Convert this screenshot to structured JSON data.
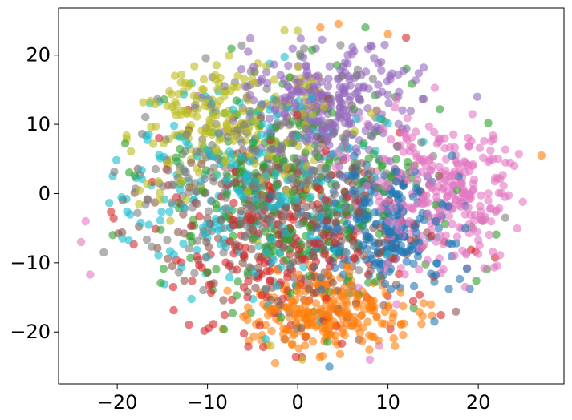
{
  "chart_data": {
    "type": "scatter",
    "title": "",
    "xlabel": "",
    "ylabel": "",
    "xlim": [
      -26.5,
      29.5
    ],
    "ylim": [
      -27.5,
      26.8
    ],
    "xticks": [
      -20,
      -10,
      0,
      10,
      20
    ],
    "yticks": [
      -20,
      -10,
      0,
      10,
      20
    ],
    "xtick_labels": [
      "−20",
      "−10",
      "0",
      "10",
      "20"
    ],
    "ytick_labels": [
      "−20",
      "−10",
      "0",
      "10",
      "20"
    ],
    "grid": false,
    "legend": "none",
    "marker_alpha": 0.6,
    "n_points": 2600,
    "palette": [
      "#1f77b4",
      "#ff7f0e",
      "#2ca02c",
      "#d62728",
      "#9467bd",
      "#8c564b",
      "#e377c2",
      "#7f7f7f",
      "#bcbd22",
      "#17becf"
    ],
    "clusters": [
      {
        "color": "#1f77b4",
        "center": [
          9,
          -5
        ],
        "spread": [
          6,
          6
        ],
        "weight": 1.0
      },
      {
        "color": "#ff7f0e",
        "center": [
          3,
          -17
        ],
        "spread": [
          6,
          4
        ],
        "weight": 0.9
      },
      {
        "color": "#2ca02c",
        "center": [
          0,
          0
        ],
        "spread": [
          11,
          11
        ],
        "weight": 0.8
      },
      {
        "color": "#d62728",
        "center": [
          0,
          -8
        ],
        "spread": [
          10,
          9
        ],
        "weight": 0.9
      },
      {
        "color": "#9467bd",
        "center": [
          3,
          13
        ],
        "spread": [
          6,
          6
        ],
        "weight": 1.0
      },
      {
        "color": "#8c564b",
        "center": [
          -2,
          -3
        ],
        "spread": [
          10,
          9
        ],
        "weight": 0.8
      },
      {
        "color": "#e377c2",
        "center": [
          16,
          0
        ],
        "spread": [
          6,
          7
        ],
        "weight": 1.0
      },
      {
        "color": "#7f7f7f",
        "center": [
          -4,
          3
        ],
        "spread": [
          10,
          10
        ],
        "weight": 1.0
      },
      {
        "color": "#bcbd22",
        "center": [
          -8,
          10
        ],
        "spread": [
          8,
          7
        ],
        "weight": 1.0
      },
      {
        "color": "#17becf",
        "center": [
          -6,
          0
        ],
        "spread": [
          11,
          10
        ],
        "weight": 1.0
      }
    ],
    "outliers": [
      {
        "x": -23.5,
        "y": -4,
        "color": "#e377c2"
      },
      {
        "x": -24,
        "y": -7,
        "color": "#e377c2"
      },
      {
        "x": -23,
        "y": -11.7,
        "color": "#e377c2"
      },
      {
        "x": -21.5,
        "y": -8.5,
        "color": "#7f7f7f"
      },
      {
        "x": -20.5,
        "y": -6,
        "color": "#2ca02c"
      },
      {
        "x": 27,
        "y": 5.5,
        "color": "#ff7f0e"
      },
      {
        "x": 24.5,
        "y": 5.7,
        "color": "#e377c2"
      },
      {
        "x": 24,
        "y": 4,
        "color": "#e377c2"
      },
      {
        "x": 23,
        "y": -3.5,
        "color": "#7f7f7f"
      },
      {
        "x": 0,
        "y": 23.5,
        "color": "#bcbd22"
      },
      {
        "x": 2.5,
        "y": 24,
        "color": "#ff7f0e"
      },
      {
        "x": 4.5,
        "y": 24.5,
        "color": "#ff7f0e"
      },
      {
        "x": 7.5,
        "y": 24,
        "color": "#2ca02c"
      },
      {
        "x": 10,
        "y": 23,
        "color": "#ff7f0e"
      },
      {
        "x": 12,
        "y": 22.5,
        "color": "#d62728"
      },
      {
        "x": 3.5,
        "y": -25,
        "color": "#1f77b4"
      },
      {
        "x": -2.5,
        "y": -24.5,
        "color": "#ff7f0e"
      },
      {
        "x": 0.5,
        "y": -24,
        "color": "#bcbd22"
      },
      {
        "x": 8,
        "y": -24,
        "color": "#e377c2"
      },
      {
        "x": -3,
        "y": -22,
        "color": "#bcbd22"
      }
    ]
  }
}
